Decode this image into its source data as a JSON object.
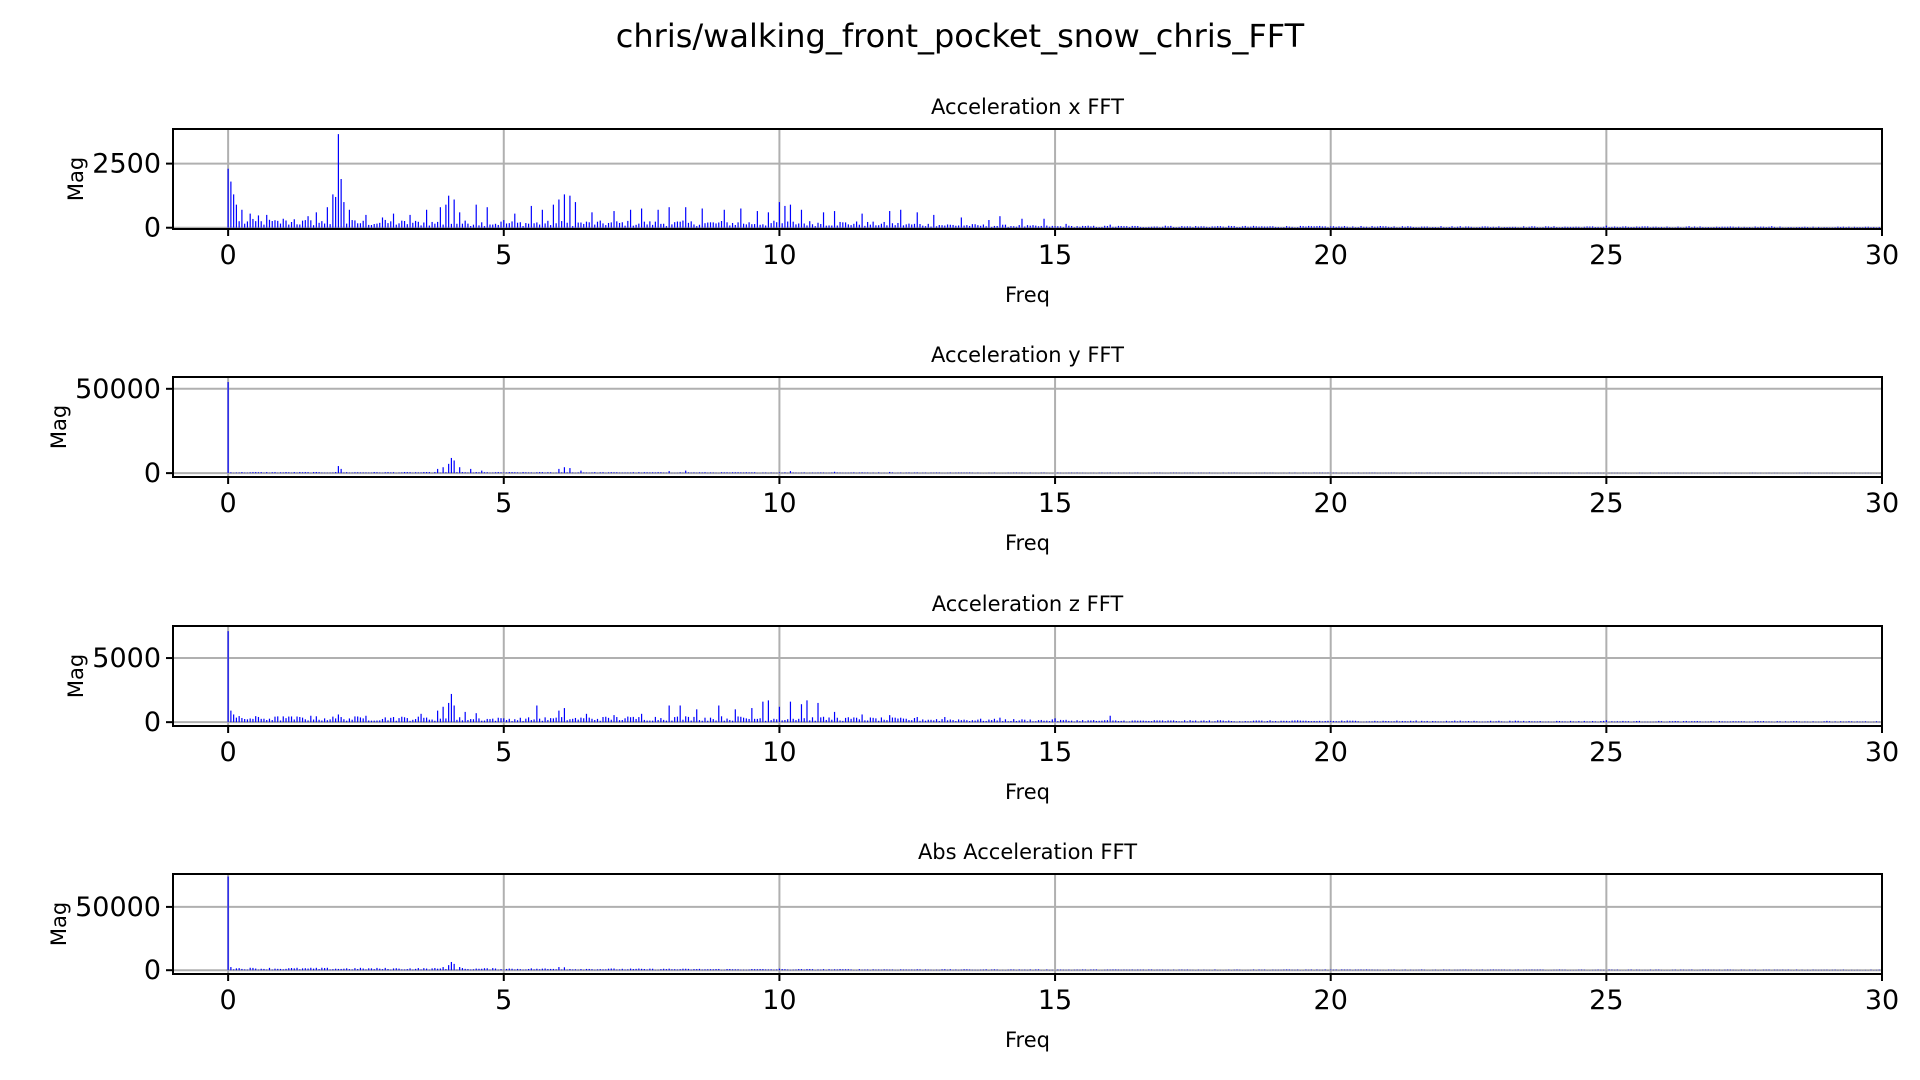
{
  "figure_title": "chris/walking_front_pocket_snow_chris_FFT",
  "series_color": "#0000ff",
  "chart_data": [
    {
      "type": "bar",
      "title": "Acceleration x FFT",
      "xlabel": "Freq",
      "ylabel": "Mag",
      "xlim": [
        -1,
        30
      ],
      "ylim": [
        -50,
        3850
      ],
      "xticks": [
        0,
        5,
        10,
        15,
        20,
        25,
        30
      ],
      "yticks": [
        0,
        2500
      ],
      "grid": true,
      "freq_step": 0.05,
      "peaks": [
        [
          0.0,
          2300
        ],
        [
          0.05,
          1800
        ],
        [
          0.1,
          1300
        ],
        [
          0.15,
          900
        ],
        [
          0.25,
          700
        ],
        [
          0.4,
          550
        ],
        [
          0.55,
          480
        ],
        [
          0.7,
          500
        ],
        [
          1.0,
          350
        ],
        [
          1.2,
          330
        ],
        [
          1.45,
          450
        ],
        [
          1.6,
          600
        ],
        [
          1.8,
          800
        ],
        [
          1.9,
          1300
        ],
        [
          1.95,
          1200
        ],
        [
          2.0,
          3650
        ],
        [
          2.05,
          1900
        ],
        [
          2.1,
          1000
        ],
        [
          2.2,
          700
        ],
        [
          2.5,
          500
        ],
        [
          2.8,
          400
        ],
        [
          3.0,
          550
        ],
        [
          3.3,
          500
        ],
        [
          3.6,
          700
        ],
        [
          3.85,
          800
        ],
        [
          3.95,
          900
        ],
        [
          4.0,
          1250
        ],
        [
          4.1,
          1100
        ],
        [
          4.2,
          600
        ],
        [
          4.5,
          900
        ],
        [
          4.7,
          800
        ],
        [
          5.0,
          300
        ],
        [
          5.2,
          550
        ],
        [
          5.5,
          850
        ],
        [
          5.7,
          700
        ],
        [
          5.9,
          900
        ],
        [
          6.0,
          1100
        ],
        [
          6.1,
          1300
        ],
        [
          6.2,
          1250
        ],
        [
          6.3,
          1000
        ],
        [
          6.6,
          600
        ],
        [
          7.0,
          650
        ],
        [
          7.3,
          700
        ],
        [
          7.5,
          750
        ],
        [
          7.8,
          700
        ],
        [
          8.0,
          800
        ],
        [
          8.3,
          800
        ],
        [
          8.6,
          750
        ],
        [
          9.0,
          700
        ],
        [
          9.3,
          750
        ],
        [
          9.6,
          650
        ],
        [
          9.8,
          600
        ],
        [
          10.0,
          1000
        ],
        [
          10.1,
          850
        ],
        [
          10.2,
          900
        ],
        [
          10.4,
          700
        ],
        [
          10.8,
          600
        ],
        [
          11.0,
          650
        ],
        [
          11.5,
          550
        ],
        [
          12.0,
          650
        ],
        [
          12.2,
          700
        ],
        [
          12.5,
          600
        ],
        [
          12.8,
          500
        ],
        [
          13.3,
          400
        ],
        [
          13.8,
          300
        ],
        [
          14.0,
          450
        ],
        [
          14.4,
          350
        ],
        [
          14.8,
          350
        ],
        [
          15.2,
          150
        ],
        [
          16.0,
          120
        ],
        [
          17.0,
          80
        ],
        [
          18.0,
          60
        ],
        [
          20.0,
          50
        ],
        [
          22.0,
          60
        ],
        [
          25.0,
          80
        ],
        [
          26.5,
          60
        ],
        [
          28.0,
          60
        ]
      ],
      "floor": [
        [
          0,
          250
        ],
        [
          5,
          200
        ],
        [
          11,
          200
        ],
        [
          13,
          120
        ],
        [
          15,
          60
        ],
        [
          30,
          30
        ]
      ]
    },
    {
      "type": "bar",
      "title": "Acceleration y FFT",
      "xlabel": "Freq",
      "ylabel": "Mag",
      "xlim": [
        -1,
        30
      ],
      "ylim": [
        -2300,
        57000
      ],
      "xticks": [
        0,
        5,
        10,
        15,
        20,
        25,
        30
      ],
      "yticks": [
        0,
        50000
      ],
      "grid": true,
      "freq_step": 0.05,
      "peaks": [
        [
          0.0,
          54000
        ],
        [
          2.0,
          4200
        ],
        [
          2.05,
          2500
        ],
        [
          3.8,
          2500
        ],
        [
          3.9,
          3500
        ],
        [
          4.0,
          5500
        ],
        [
          4.05,
          9000
        ],
        [
          4.1,
          7500
        ],
        [
          4.2,
          3500
        ],
        [
          4.4,
          2500
        ],
        [
          4.6,
          1500
        ],
        [
          6.0,
          2500
        ],
        [
          6.1,
          3500
        ],
        [
          6.2,
          3000
        ],
        [
          6.4,
          1500
        ],
        [
          8.0,
          1200
        ],
        [
          8.3,
          1500
        ],
        [
          10.2,
          1200
        ],
        [
          11.0,
          800
        ],
        [
          12.0,
          700
        ]
      ],
      "floor": [
        [
          0,
          500
        ],
        [
          5,
          450
        ],
        [
          10,
          350
        ],
        [
          15,
          200
        ],
        [
          30,
          100
        ]
      ]
    },
    {
      "type": "bar",
      "title": "Acceleration z FFT",
      "xlabel": "Freq",
      "ylabel": "Mag",
      "xlim": [
        -1,
        30
      ],
      "ylim": [
        -300,
        7500
      ],
      "xticks": [
        0,
        5,
        10,
        15,
        20,
        25,
        30
      ],
      "yticks": [
        0,
        5000
      ],
      "grid": true,
      "freq_step": 0.05,
      "peaks": [
        [
          0.0,
          7100
        ],
        [
          0.05,
          900
        ],
        [
          0.1,
          600
        ],
        [
          1.0,
          450
        ],
        [
          1.5,
          500
        ],
        [
          2.0,
          600
        ],
        [
          2.5,
          500
        ],
        [
          3.0,
          400
        ],
        [
          3.5,
          650
        ],
        [
          3.8,
          900
        ],
        [
          3.9,
          1200
        ],
        [
          4.0,
          1500
        ],
        [
          4.05,
          2200
        ],
        [
          4.1,
          1300
        ],
        [
          4.3,
          800
        ],
        [
          4.5,
          700
        ],
        [
          5.0,
          300
        ],
        [
          5.6,
          1300
        ],
        [
          6.0,
          900
        ],
        [
          6.1,
          1100
        ],
        [
          6.5,
          650
        ],
        [
          7.0,
          550
        ],
        [
          7.5,
          650
        ],
        [
          8.0,
          1300
        ],
        [
          8.2,
          1300
        ],
        [
          8.5,
          1000
        ],
        [
          8.9,
          1300
        ],
        [
          9.2,
          1000
        ],
        [
          9.5,
          1100
        ],
        [
          9.7,
          1600
        ],
        [
          9.8,
          1700
        ],
        [
          10.0,
          1200
        ],
        [
          10.2,
          1600
        ],
        [
          10.4,
          1400
        ],
        [
          10.5,
          1700
        ],
        [
          10.7,
          1500
        ],
        [
          11.0,
          800
        ],
        [
          11.5,
          600
        ],
        [
          12.0,
          550
        ],
        [
          12.5,
          400
        ],
        [
          13.0,
          400
        ],
        [
          14.0,
          350
        ],
        [
          15.0,
          300
        ],
        [
          16.0,
          500
        ],
        [
          18.0,
          150
        ],
        [
          20.0,
          100
        ],
        [
          25.0,
          150
        ],
        [
          29.0,
          100
        ]
      ],
      "floor": [
        [
          0,
          350
        ],
        [
          3.5,
          320
        ],
        [
          5,
          260
        ],
        [
          8,
          360
        ],
        [
          11,
          300
        ],
        [
          13,
          220
        ],
        [
          16,
          120
        ],
        [
          30,
          50
        ]
      ]
    },
    {
      "type": "bar",
      "title": "Abs Acceleration FFT",
      "xlabel": "Freq",
      "ylabel": "Mag",
      "xlim": [
        -1,
        30
      ],
      "ylim": [
        -3000,
        76000
      ],
      "xticks": [
        0,
        5,
        10,
        15,
        20,
        25,
        30
      ],
      "yticks": [
        0,
        50000
      ],
      "grid": true,
      "freq_step": 0.05,
      "peaks": [
        [
          0.0,
          74000
        ],
        [
          0.05,
          2500
        ],
        [
          3.9,
          2500
        ],
        [
          4.0,
          4000
        ],
        [
          4.05,
          6500
        ],
        [
          4.1,
          5000
        ],
        [
          4.2,
          2500
        ],
        [
          6.0,
          2500
        ],
        [
          6.1,
          2300
        ],
        [
          8.0,
          1200
        ],
        [
          10.0,
          1200
        ],
        [
          11.0,
          700
        ]
      ],
      "floor": [
        [
          0,
          1500
        ],
        [
          4,
          1300
        ],
        [
          10,
          700
        ],
        [
          15,
          450
        ],
        [
          30,
          300
        ]
      ]
    }
  ]
}
